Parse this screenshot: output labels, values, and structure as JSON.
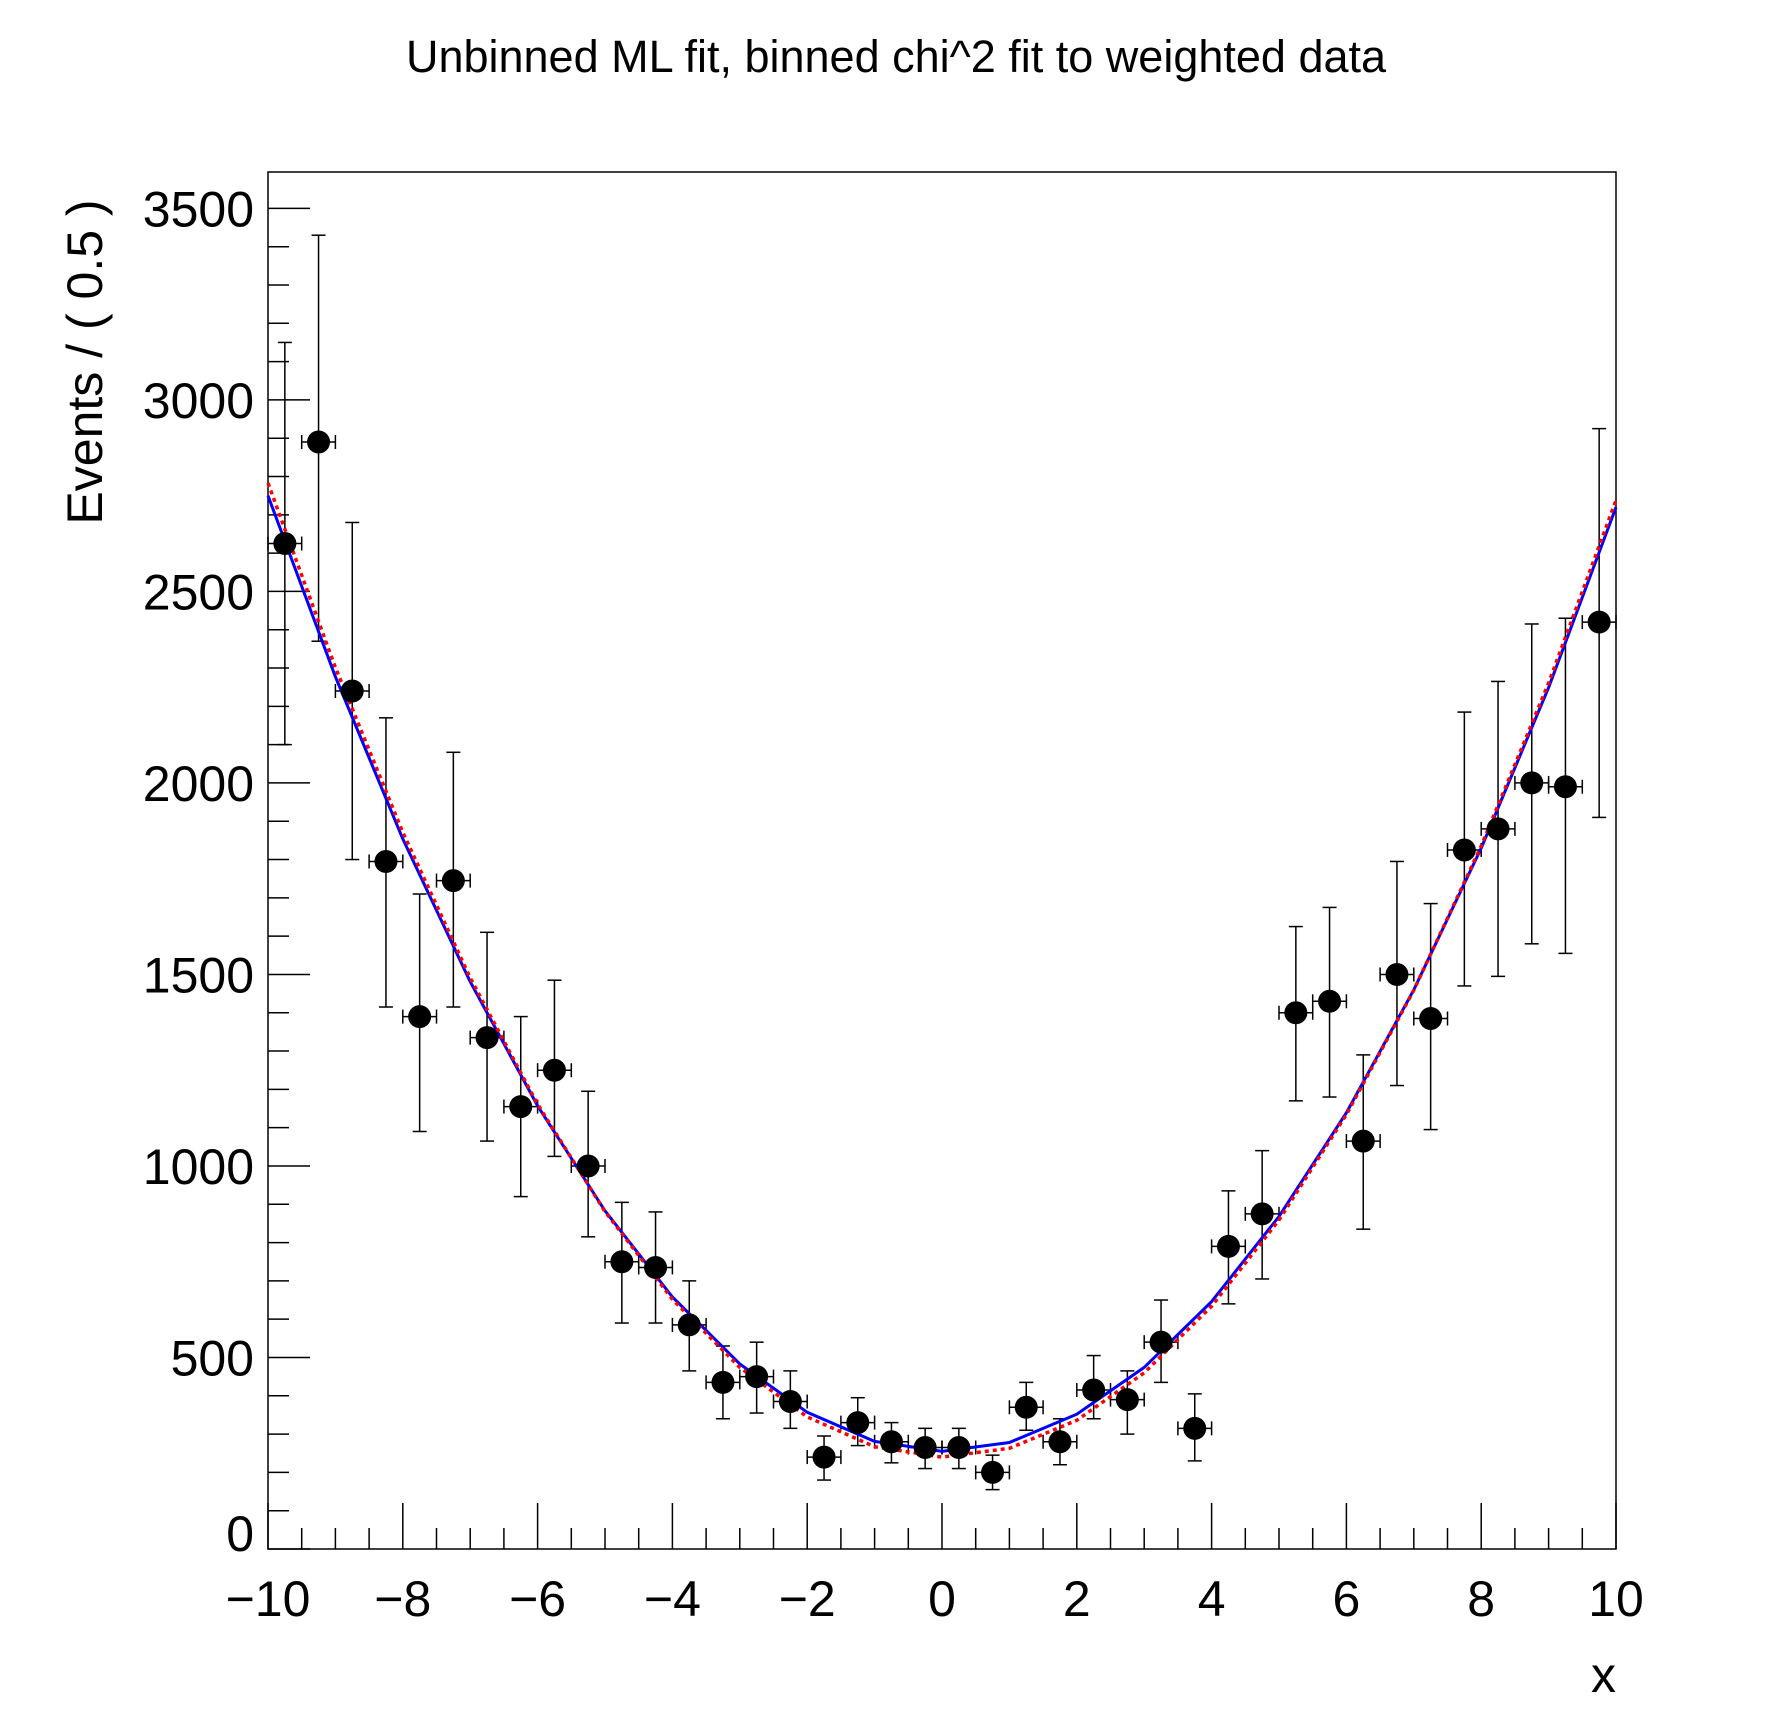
{
  "chart_data": {
    "type": "scatter",
    "title": "Unbinned ML fit, binned chi^2 fit to weighted data",
    "xlabel": "x",
    "ylabel": "Events / ( 0.5 )",
    "xlim": [
      -10,
      10
    ],
    "ylim": [
      0,
      3595
    ],
    "grid": false,
    "x_ticks": [
      -10,
      -8,
      -6,
      -4,
      -2,
      0,
      2,
      4,
      6,
      8,
      10
    ],
    "x_tick_labels": [
      "−10",
      "−8",
      "−6",
      "−4",
      "−2",
      "0",
      "2",
      "4",
      "6",
      "8",
      "10"
    ],
    "y_ticks": [
      0,
      500,
      1000,
      1500,
      2000,
      2500,
      3000,
      3500
    ],
    "y_tick_labels": [
      "0",
      "500",
      "1000",
      "1500",
      "2000",
      "2500",
      "3000",
      "3500"
    ],
    "bin_width": 0.5,
    "data": {
      "color": "#000000",
      "x": [
        -9.75,
        -9.25,
        -8.75,
        -8.25,
        -7.75,
        -7.25,
        -6.75,
        -6.25,
        -5.75,
        -5.25,
        -4.75,
        -4.25,
        -3.75,
        -3.25,
        -2.75,
        -2.25,
        -1.75,
        -1.25,
        -0.75,
        -0.25,
        0.25,
        0.75,
        1.25,
        1.75,
        2.25,
        2.75,
        3.25,
        3.75,
        4.25,
        4.75,
        5.25,
        5.75,
        6.25,
        6.75,
        7.25,
        7.75,
        8.25,
        8.75,
        9.25,
        9.75
      ],
      "y": [
        2625,
        2890,
        2240,
        1795,
        1390,
        1745,
        1335,
        1155,
        1250,
        1000,
        750,
        735,
        585,
        435,
        450,
        385,
        240,
        330,
        280,
        265,
        265,
        200,
        370,
        280,
        415,
        390,
        540,
        315,
        790,
        875,
        1400,
        1430,
        1065,
        1500,
        1385,
        1825,
        1880,
        2000,
        1990,
        2420
      ],
      "y_low": [
        2100,
        2370,
        1800,
        1415,
        1090,
        1415,
        1065,
        920,
        1025,
        815,
        590,
        590,
        465,
        340,
        355,
        315,
        180,
        270,
        225,
        210,
        210,
        155,
        310,
        220,
        340,
        300,
        435,
        230,
        640,
        705,
        1170,
        1180,
        835,
        1210,
        1095,
        1470,
        1495,
        1580,
        1555,
        1910
      ],
      "y_high": [
        3150,
        3430,
        2680,
        2170,
        1710,
        2080,
        1610,
        1390,
        1485,
        1195,
        905,
        880,
        700,
        530,
        540,
        465,
        295,
        395,
        330,
        315,
        315,
        245,
        435,
        340,
        505,
        465,
        650,
        405,
        935,
        1040,
        1625,
        1675,
        1290,
        1795,
        1685,
        2185,
        2265,
        2415,
        2430,
        2925
      ]
    },
    "curves": [
      {
        "style": "solid",
        "color": "#0000ff",
        "x": [
          -10,
          -9,
          -8,
          -7,
          -6,
          -5,
          -4,
          -3,
          -2,
          -1,
          0,
          1,
          2,
          3,
          4,
          5,
          6,
          7,
          8,
          9,
          10
        ],
        "y": [
          2750,
          2277,
          1854,
          1481,
          1157,
          883,
          658,
          483,
          357,
          281,
          255,
          278,
          352,
          474,
          646,
          868,
          1139,
          1460,
          1830,
          2249,
          2720
        ]
      },
      {
        "style": "dashed",
        "color": "#ff0000",
        "x": [
          -10,
          -9,
          -8,
          -7,
          -6,
          -5,
          -4,
          -3,
          -2,
          -1,
          0,
          1,
          2,
          3,
          4,
          5,
          6,
          7,
          8,
          9,
          10
        ],
        "y": [
          2783,
          2301,
          1871,
          1491,
          1161,
          881,
          652,
          474,
          345,
          267,
          240,
          263,
          336,
          460,
          634,
          859,
          1134,
          1459,
          1835,
          2261,
          2738
        ]
      }
    ]
  }
}
